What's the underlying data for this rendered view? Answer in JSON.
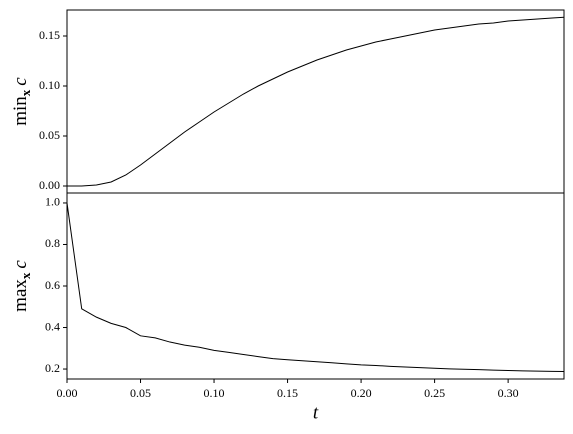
{
  "chart_data": [
    {
      "type": "line",
      "ylabel": {
        "op": "min",
        "sub": "x",
        "var": "c"
      },
      "x": [
        0,
        0.01,
        0.02,
        0.03,
        0.04,
        0.05,
        0.06,
        0.07,
        0.08,
        0.09,
        0.1,
        0.11,
        0.12,
        0.13,
        0.14,
        0.15,
        0.16,
        0.17,
        0.18,
        0.19,
        0.2,
        0.21,
        0.22,
        0.23,
        0.24,
        0.25,
        0.26,
        0.27,
        0.28,
        0.29,
        0.3,
        0.31,
        0.32,
        0.33,
        0.34
      ],
      "series": [
        {
          "color": "#000000",
          "values": [
            0,
            0,
            0.001,
            0.004,
            0.011,
            0.021,
            0.032,
            0.043,
            0.054,
            0.064,
            0.074,
            0.083,
            0.092,
            0.1,
            0.107,
            0.114,
            0.12,
            0.126,
            0.131,
            0.136,
            0.14,
            0.144,
            0.147,
            0.15,
            0.153,
            0.156,
            0.158,
            0.16,
            0.162,
            0.163,
            0.165,
            0.166,
            0.167,
            0.168,
            0.169
          ]
        }
      ],
      "xlim": [
        0,
        0.338
      ],
      "ylim": [
        -0.007,
        0.176
      ],
      "yticks": [
        {
          "value": 0,
          "label": "0.00"
        },
        0.05,
        {
          "value": 0.1,
          "label": "0.10"
        },
        0.15
      ]
    },
    {
      "type": "line",
      "ylabel": {
        "op": "max",
        "sub": "x",
        "var": "c"
      },
      "xlabel": "t",
      "x": [
        0,
        0.01,
        0.02,
        0.03,
        0.04,
        0.05,
        0.06,
        0.07,
        0.08,
        0.09,
        0.1,
        0.11,
        0.12,
        0.13,
        0.14,
        0.15,
        0.16,
        0.17,
        0.18,
        0.19,
        0.2,
        0.21,
        0.22,
        0.23,
        0.24,
        0.25,
        0.26,
        0.27,
        0.28,
        0.29,
        0.3,
        0.31,
        0.32,
        0.33,
        0.34
      ],
      "series": [
        {
          "color": "#000000",
          "values": [
            1.0,
            0.49,
            0.45,
            0.42,
            0.4,
            0.36,
            0.35,
            0.33,
            0.315,
            0.305,
            0.29,
            0.28,
            0.27,
            0.26,
            0.25,
            0.245,
            0.24,
            0.235,
            0.23,
            0.225,
            0.22,
            0.217,
            0.213,
            0.21,
            0.207,
            0.204,
            0.201,
            0.199,
            0.197,
            0.195,
            0.193,
            0.191,
            0.19,
            0.189,
            0.188
          ]
        }
      ],
      "xlim": [
        0,
        0.338
      ],
      "ylim": [
        0.152,
        1.048
      ],
      "xticks": [
        {
          "value": 0,
          "label": "0.00"
        },
        0.05,
        {
          "value": 0.1,
          "label": "0.10"
        },
        0.15,
        {
          "value": 0.2,
          "label": "0.20"
        },
        0.25,
        {
          "value": 0.3,
          "label": "0.30"
        }
      ],
      "yticks": [
        0.2,
        0.4,
        0.6,
        0.8,
        {
          "value": 1,
          "label": "1.0"
        }
      ]
    }
  ]
}
